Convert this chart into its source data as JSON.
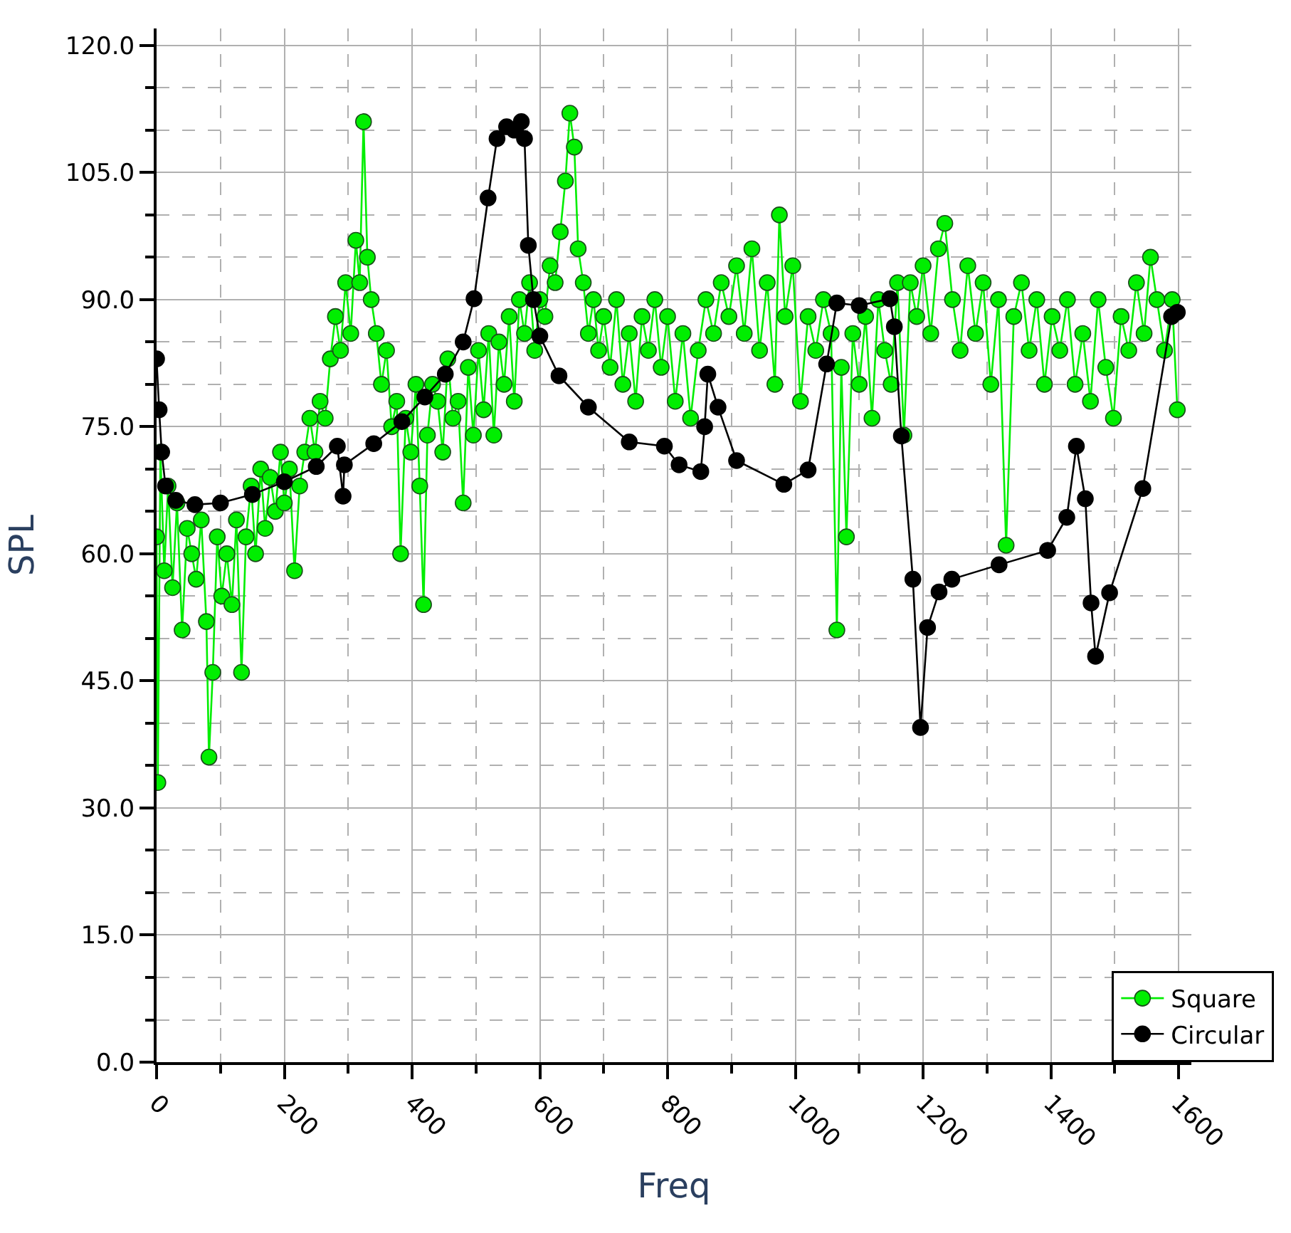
{
  "chart_data": {
    "type": "line",
    "xlabel": "Freq",
    "ylabel": "SPL",
    "xlim": [
      0,
      1620
    ],
    "ylim": [
      0,
      122
    ],
    "xticks": [
      0,
      200,
      400,
      600,
      800,
      1000,
      1200,
      1400,
      1600
    ],
    "yticks": [
      {
        "value": 0,
        "label": "0.0"
      },
      {
        "value": 15,
        "label": "15.0"
      },
      {
        "value": 30,
        "label": "30.0"
      },
      {
        "value": 45,
        "label": "45.0"
      },
      {
        "value": 60,
        "label": "60.0"
      },
      {
        "value": 75,
        "label": "75.0"
      },
      {
        "value": 90,
        "label": "90.0"
      },
      {
        "value": 105,
        "label": "105.0"
      },
      {
        "value": 120,
        "label": "120.0"
      }
    ],
    "grid": true,
    "legend": "bottom right",
    "marker": "circle",
    "line_style": "solid",
    "series": [
      {
        "name": "Square",
        "color": "#00ee00",
        "x": [
          0,
          2,
          6,
          12,
          18,
          25,
          32,
          40,
          48,
          55,
          62,
          70,
          78,
          82,
          88,
          95,
          102,
          110,
          118,
          125,
          133,
          140,
          148,
          155,
          163,
          170,
          178,
          186,
          194,
          200,
          208,
          216,
          224,
          232,
          240,
          248,
          256,
          264,
          272,
          280,
          288,
          296,
          304,
          312,
          318,
          324,
          330,
          336,
          344,
          352,
          360,
          368,
          376,
          382,
          390,
          398,
          406,
          412,
          418,
          424,
          432,
          440,
          448,
          456,
          464,
          472,
          480,
          488,
          496,
          504,
          512,
          520,
          528,
          536,
          544,
          552,
          560,
          568,
          576,
          584,
          592,
          600,
          608,
          616,
          624,
          632,
          640,
          647,
          654,
          660,
          668,
          676,
          684,
          692,
          700,
          710,
          720,
          730,
          740,
          750,
          760,
          770,
          780,
          790,
          800,
          812,
          824,
          836,
          848,
          860,
          872,
          884,
          896,
          908,
          920,
          932,
          944,
          956,
          968,
          975,
          984,
          996,
          1008,
          1020,
          1032,
          1044,
          1056,
          1065,
          1072,
          1080,
          1090,
          1100,
          1110,
          1120,
          1130,
          1140,
          1150,
          1160,
          1170,
          1180,
          1190,
          1200,
          1212,
          1224,
          1234,
          1246,
          1258,
          1270,
          1282,
          1294,
          1306,
          1318,
          1330,
          1342,
          1354,
          1366,
          1378,
          1390,
          1402,
          1414,
          1426,
          1438,
          1450,
          1462,
          1474,
          1486,
          1498,
          1510,
          1522,
          1534,
          1546,
          1556,
          1566,
          1578,
          1590,
          1598
        ],
        "values": [
          62,
          33,
          72,
          58,
          68,
          56,
          66,
          51,
          63,
          60,
          57,
          64,
          52,
          36,
          46,
          62,
          55,
          60,
          54,
          64,
          46,
          62,
          68,
          60,
          70,
          63,
          69,
          65,
          72,
          66,
          70,
          58,
          68,
          72,
          76,
          72,
          78,
          76,
          83,
          88,
          84,
          92,
          86,
          97,
          92,
          111,
          95,
          90,
          86,
          80,
          84,
          75,
          78,
          60,
          76,
          72,
          80,
          68,
          54,
          74,
          80,
          78,
          72,
          83,
          76,
          78,
          66,
          82,
          74,
          84,
          77,
          86,
          74,
          85,
          80,
          88,
          78,
          90,
          86,
          92,
          84,
          90,
          88,
          94,
          92,
          98,
          104,
          112,
          108,
          96,
          92,
          86,
          90,
          84,
          88,
          82,
          90,
          80,
          86,
          78,
          88,
          84,
          90,
          82,
          88,
          78,
          86,
          76,
          84,
          90,
          86,
          92,
          88,
          94,
          86,
          96,
          84,
          92,
          80,
          100,
          88,
          94,
          78,
          88,
          84,
          90,
          86,
          51,
          82,
          62,
          86,
          80,
          88,
          76,
          90,
          84,
          80,
          92,
          74,
          92,
          88,
          94,
          86,
          96,
          99,
          90,
          84,
          94,
          86,
          92,
          80,
          90,
          61,
          88,
          92,
          84,
          90,
          80,
          88,
          84,
          90,
          80,
          86,
          78,
          90,
          82,
          76,
          88,
          84,
          92,
          86,
          95,
          90,
          84,
          90,
          77
        ]
      },
      {
        "name": "Circular",
        "color": "#000000",
        "x": [
          0,
          4,
          8,
          14,
          30,
          60,
          100,
          150,
          200,
          250,
          283,
          292,
          294,
          340,
          384,
          420,
          452,
          480,
          497,
          519,
          533,
          548,
          560,
          571,
          576,
          582,
          590,
          600,
          630,
          676,
          740,
          795,
          818,
          852,
          858,
          863,
          879,
          908,
          982,
          1020,
          1049,
          1065,
          1100,
          1148,
          1155,
          1166,
          1184,
          1196,
          1207,
          1225,
          1245,
          1319,
          1395,
          1425,
          1440,
          1454,
          1463,
          1470,
          1492,
          1544,
          1589,
          1598
        ],
        "values": [
          83,
          77,
          72,
          68,
          66.3,
          65.8,
          66,
          67,
          68.5,
          70.3,
          72.7,
          66.8,
          70.5,
          73,
          75.6,
          78.5,
          81.2,
          85,
          90.1,
          102,
          109,
          110.4,
          110,
          111,
          109,
          96.4,
          90,
          85.7,
          81,
          77.3,
          73.2,
          72.7,
          70.5,
          69.7,
          75,
          81.2,
          77.3,
          71,
          68.2,
          69.9,
          82.4,
          89.6,
          89.3,
          90.1,
          86.8,
          73.9,
          57,
          39.5,
          51.3,
          55.5,
          57,
          58.7,
          60.4,
          64.3,
          72.7,
          66.5,
          54.2,
          47.9,
          55.4,
          67.7,
          88,
          88.5
        ]
      }
    ]
  }
}
